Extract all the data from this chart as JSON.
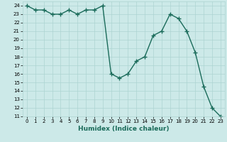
{
  "x": [
    0,
    1,
    2,
    3,
    4,
    5,
    6,
    7,
    8,
    9,
    10,
    11,
    12,
    13,
    14,
    15,
    16,
    17,
    18,
    19,
    20,
    21,
    22,
    23
  ],
  "y": [
    24,
    23.5,
    23.5,
    23,
    23,
    23.5,
    23,
    23.5,
    23.5,
    24,
    16,
    15.5,
    16,
    17.5,
    18,
    20.5,
    21,
    23,
    22.5,
    21,
    18.5,
    14.5,
    12,
    11
  ],
  "line_color": "#1a6b5a",
  "marker": "+",
  "marker_size": 4,
  "bg_color": "#cce9e8",
  "grid_color": "#add4d2",
  "xlabel": "Humidex (Indice chaleur)",
  "ylim": [
    11,
    24.5
  ],
  "xlim": [
    -0.5,
    23.5
  ],
  "yticks": [
    11,
    12,
    13,
    14,
    15,
    16,
    17,
    18,
    19,
    20,
    21,
    22,
    23,
    24
  ],
  "xticks": [
    0,
    1,
    2,
    3,
    4,
    5,
    6,
    7,
    8,
    9,
    10,
    11,
    12,
    13,
    14,
    15,
    16,
    17,
    18,
    19,
    20,
    21,
    22,
    23
  ]
}
